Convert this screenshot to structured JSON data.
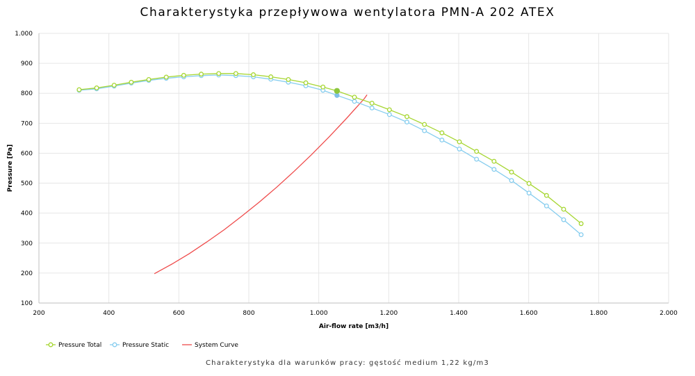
{
  "chart_data": {
    "type": "line",
    "title": "Charakterystyka przepływowa wentylatora PMN-A 202 ATEX",
    "footnote": "Charakterystyka dla warunków pracy: gęstość medium 1,22 kg/m3",
    "xlabel": "Air-flow rate [m3/h]",
    "ylabel": "Pressure [Pa]",
    "xlim": [
      200,
      2000
    ],
    "ylim": [
      100,
      1000
    ],
    "x_ticks": [
      {
        "value": 200,
        "label": "200"
      },
      {
        "value": 400,
        "label": "400"
      },
      {
        "value": 600,
        "label": "600"
      },
      {
        "value": 800,
        "label": "800"
      },
      {
        "value": 1000,
        "label": "1.000"
      },
      {
        "value": 1200,
        "label": "1.200"
      },
      {
        "value": 1400,
        "label": "1.400"
      },
      {
        "value": 1600,
        "label": "1.600"
      },
      {
        "value": 1800,
        "label": "1.800"
      },
      {
        "value": 2000,
        "label": "2.000"
      }
    ],
    "y_ticks": [
      {
        "value": 100,
        "label": "100"
      },
      {
        "value": 200,
        "label": "200"
      },
      {
        "value": 300,
        "label": "300"
      },
      {
        "value": 400,
        "label": "400"
      },
      {
        "value": 500,
        "label": "500"
      },
      {
        "value": 600,
        "label": "600"
      },
      {
        "value": 700,
        "label": "700"
      },
      {
        "value": 800,
        "label": "800"
      },
      {
        "value": 900,
        "label": "900"
      },
      {
        "value": 1000,
        "label": "1.000"
      }
    ],
    "grid": true,
    "legend_position": "bottom-left",
    "series": [
      {
        "name": "Pressure Total",
        "color": "#a6d631",
        "marker": "circle",
        "x": [
          315,
          365,
          415,
          464,
          514,
          564,
          614,
          664,
          714,
          763,
          813,
          863,
          913,
          963,
          1012,
          1052,
          1102,
          1152,
          1202,
          1252,
          1302,
          1352,
          1402,
          1451,
          1501,
          1551,
          1601,
          1651,
          1700,
          1750
        ],
        "y": [
          812,
          818,
          827,
          837,
          846,
          854,
          860,
          864,
          866,
          866,
          862,
          855,
          846,
          835,
          821,
          808,
          787,
          767,
          745,
          722,
          696,
          668,
          638,
          606,
          573,
          537,
          499,
          459,
          413,
          365
        ]
      },
      {
        "name": "Pressure Static",
        "color": "#86cdef",
        "marker": "circle",
        "x": [
          315,
          365,
          415,
          464,
          514,
          564,
          614,
          664,
          714,
          763,
          813,
          863,
          913,
          963,
          1012,
          1052,
          1102,
          1152,
          1202,
          1252,
          1302,
          1352,
          1402,
          1451,
          1501,
          1551,
          1601,
          1651,
          1700,
          1750
        ],
        "y": [
          810,
          815,
          824,
          834,
          843,
          850,
          855,
          859,
          861,
          859,
          855,
          847,
          837,
          825,
          810,
          793,
          773,
          751,
          729,
          704,
          675,
          644,
          614,
          580,
          546,
          509,
          467,
          424,
          378,
          328
        ]
      },
      {
        "name": "System Curve",
        "color": "#ef4b4b",
        "marker": "none",
        "x": [
          530,
          580,
          630,
          680,
          730,
          780,
          830,
          880,
          930,
          980,
          1030,
          1080,
          1130,
          1138
        ],
        "y": [
          198,
          230,
          265,
          304,
          345,
          390,
          437,
          487,
          540,
          596,
          655,
          717,
          782,
          795
        ]
      }
    ],
    "operating_point": {
      "x": 1052,
      "total": 808,
      "static": 793,
      "total_color": "#8cc63e",
      "static_color": "#7fbfe6"
    }
  }
}
